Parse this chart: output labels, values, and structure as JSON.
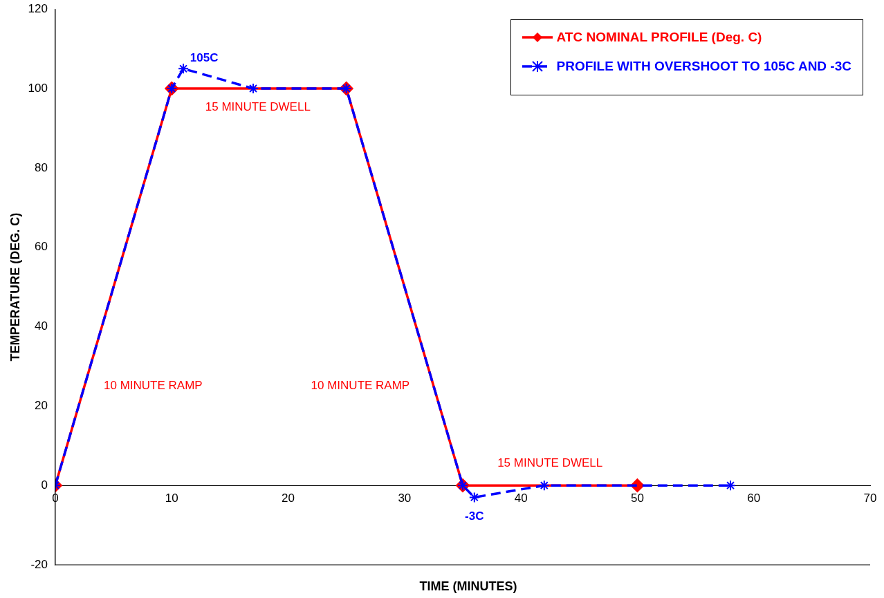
{
  "chart_data": {
    "type": "line",
    "xlabel": "TIME (MINUTES)",
    "ylabel": "TEMPERATURE (DEG. C)",
    "xlim": [
      0,
      70
    ],
    "xticks": [
      0,
      10,
      20,
      30,
      40,
      50,
      60,
      70
    ],
    "ylim": [
      -20,
      120
    ],
    "yticks": [
      -20,
      0,
      20,
      40,
      60,
      80,
      100,
      120
    ],
    "grid": false,
    "legend": "top right",
    "series": [
      {
        "name": "ATC NOMINAL PROFILE (Deg. C)",
        "color": "#ff0000",
        "x": [
          0,
          10,
          25,
          35,
          50
        ],
        "values": [
          0,
          100,
          100,
          0,
          0
        ],
        "marker": "diamond",
        "line_style": "solid"
      },
      {
        "name": "PROFILE WITH OVERSHOOT TO 105C AND -3C",
        "color": "#0000ff",
        "x": [
          0,
          10,
          11,
          17,
          25,
          35,
          36,
          42,
          58
        ],
        "values": [
          0,
          100,
          105,
          100,
          100,
          0,
          -3,
          0,
          0
        ],
        "marker": "cross",
        "line_style": "dashed"
      }
    ],
    "annotations": [
      {
        "text": "105C",
        "x": 11,
        "y": 105
      },
      "15 MINUTE DWELL",
      "10 MINUTE RAMP",
      "10 MINUTE RAMP",
      "15 MINUTE DWELL",
      {
        "text": "-3C",
        "x": 36,
        "y": -3
      }
    ]
  }
}
